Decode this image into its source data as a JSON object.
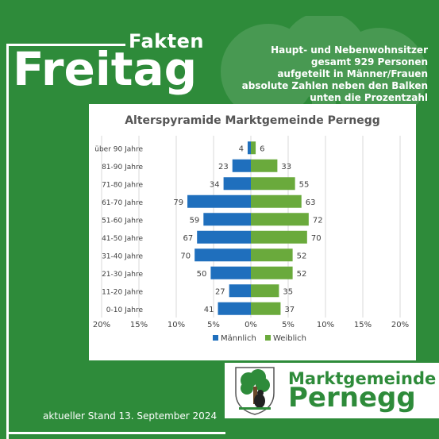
{
  "header": {
    "kicker": "Fakten",
    "title": "Freitag",
    "info_lines": [
      "Haupt- und Nebenwohnsitzer",
      "gesamt 929 Personen",
      "aufgeteilt in Männer/Frauen",
      "absolute Zahlen neben den Balken",
      "unten die Prozentzahl"
    ]
  },
  "footer": {
    "stand": "aktueller Stand 13. September 2024",
    "logo_line1": "Marktgemeinde",
    "logo_line2": "Pernegg"
  },
  "colors": {
    "background": "#2e8b3a",
    "male": "#1f6fbd",
    "female": "#6aaa3c"
  },
  "chart_data": {
    "type": "bar",
    "orientation": "horizontal",
    "title": "Alterspyramide Marktgemeinde Pernegg",
    "total": 929,
    "categories": [
      "über 90 Jahre",
      "81-90 Jahre",
      "71-80 Jahre",
      "61-70 Jahre",
      "51-60 Jahre",
      "41-50 Jahre",
      "31-40 Jahre",
      "21-30 Jahre",
      "11-20 Jahre",
      "0-10 Jahre"
    ],
    "series": [
      {
        "name": "Männlich",
        "values": [
          4,
          23,
          34,
          79,
          59,
          67,
          70,
          50,
          27,
          41
        ]
      },
      {
        "name": "Weiblich",
        "values": [
          6,
          33,
          55,
          63,
          72,
          70,
          52,
          52,
          35,
          37
        ]
      }
    ],
    "xticks": [
      "20%",
      "15%",
      "10%",
      "5%",
      "0%",
      "5%",
      "10%",
      "15%",
      "20%"
    ],
    "xlim_percent": [
      -20,
      20
    ],
    "legend_position": "bottom",
    "grid": true
  }
}
